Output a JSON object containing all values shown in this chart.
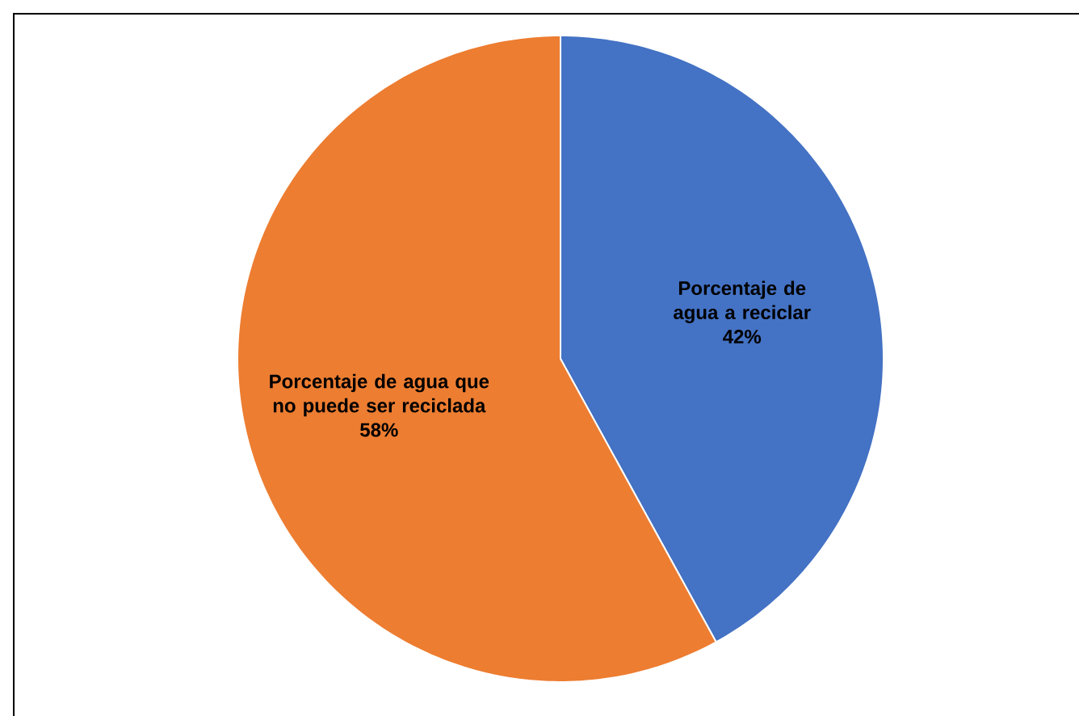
{
  "chart_data": {
    "type": "pie",
    "categories": [
      "Porcentaje de agua a reciclar",
      "Porcentaje de agua que no puede ser reciclada"
    ],
    "values": [
      42,
      58
    ],
    "colors": [
      "#4472c4",
      "#ed7d31"
    ],
    "value_labels": [
      "42%",
      "58%"
    ]
  }
}
